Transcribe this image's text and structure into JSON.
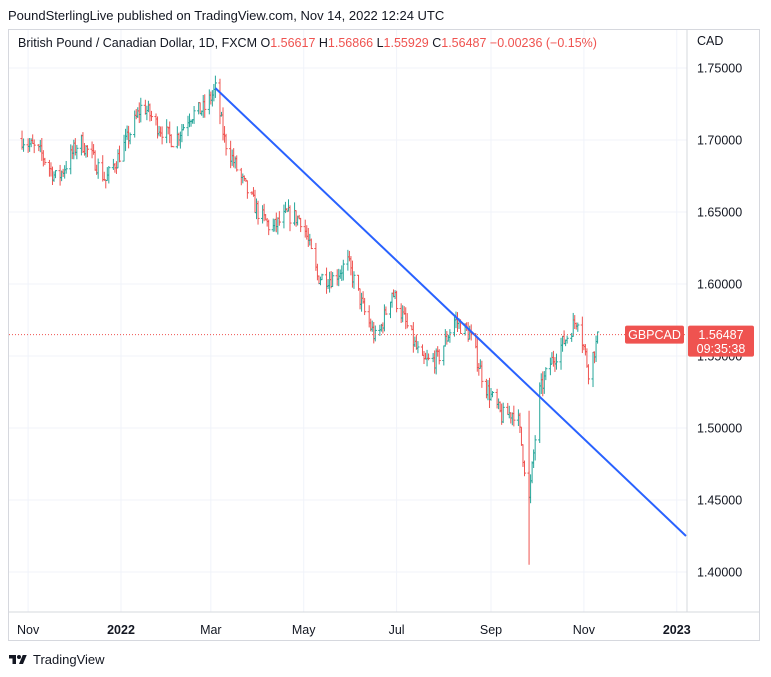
{
  "publisher_line": "PoundSterlingLive published on TradingView.com, Nov 14, 2022 12:24 UTC",
  "legend": {
    "symbol": "British Pound / Canadian Dollar, 1D, FXCM",
    "open_label": "O",
    "open": "1.56617",
    "high_label": "H",
    "high": "1.56866",
    "low_label": "L",
    "low": "1.55929",
    "close_label": "C",
    "close": "1.56487",
    "change": "−0.00236 (−0.15%)"
  },
  "currency": "CAD",
  "price_tag": {
    "symbol": "GBPCAD",
    "price": "1.56487",
    "countdown": "09:35:38"
  },
  "footer": {
    "brand": "TradingView",
    "logo_icon": "tradingview-logo-icon"
  },
  "colors": {
    "up": "#26a69a",
    "down": "#ef5350",
    "trendline": "#2962ff",
    "grid": "#f0f3fa"
  },
  "chart_data": {
    "type": "ohlc",
    "title": "British Pound / Canadian Dollar, 1D, FXCM",
    "ylim": [
      1.38,
      1.76
    ],
    "yticks": [
      "1.40000",
      "1.45000",
      "1.50000",
      "1.55000",
      "1.60000",
      "1.65000",
      "1.70000",
      "1.75000"
    ],
    "xticks": [
      "Nov",
      "2022",
      "Mar",
      "May",
      "Jul",
      "Sep",
      "Nov",
      "2023"
    ],
    "grid": true,
    "current_price": 1.56487,
    "series": [
      {
        "x": "2021-10-28",
        "y": 1.701
      },
      {
        "x": "2021-11-10",
        "y": 1.69
      },
      {
        "x": "2021-11-20",
        "y": 1.672
      },
      {
        "x": "2021-12-05",
        "y": 1.7
      },
      {
        "x": "2021-12-15",
        "y": 1.685
      },
      {
        "x": "2021-12-22",
        "y": 1.672
      },
      {
        "x": "2022-01-05",
        "y": 1.7
      },
      {
        "x": "2022-01-15",
        "y": 1.725
      },
      {
        "x": "2022-01-25",
        "y": 1.71
      },
      {
        "x": "2022-02-05",
        "y": 1.699
      },
      {
        "x": "2022-02-15",
        "y": 1.717
      },
      {
        "x": "2022-02-25",
        "y": 1.722
      },
      {
        "x": "2022-03-04",
        "y": 1.735
      },
      {
        "x": "2022-03-10",
        "y": 1.7
      },
      {
        "x": "2022-03-20",
        "y": 1.675
      },
      {
        "x": "2022-04-01",
        "y": 1.65
      },
      {
        "x": "2022-04-10",
        "y": 1.638
      },
      {
        "x": "2022-04-20",
        "y": 1.648
      },
      {
        "x": "2022-04-30",
        "y": 1.645
      },
      {
        "x": "2022-05-10",
        "y": 1.605
      },
      {
        "x": "2022-05-20",
        "y": 1.604
      },
      {
        "x": "2022-05-30",
        "y": 1.615
      },
      {
        "x": "2022-06-10",
        "y": 1.58
      },
      {
        "x": "2022-06-18",
        "y": 1.56
      },
      {
        "x": "2022-06-28",
        "y": 1.595
      },
      {
        "x": "2022-07-08",
        "y": 1.57
      },
      {
        "x": "2022-07-18",
        "y": 1.545
      },
      {
        "x": "2022-07-28",
        "y": 1.548
      },
      {
        "x": "2022-08-08",
        "y": 1.575
      },
      {
        "x": "2022-08-18",
        "y": 1.565
      },
      {
        "x": "2022-08-28",
        "y": 1.53
      },
      {
        "x": "2022-09-08",
        "y": 1.508
      },
      {
        "x": "2022-09-18",
        "y": 1.512
      },
      {
        "x": "2022-09-26",
        "y": 1.45
      },
      {
        "x": "2022-10-03",
        "y": 1.525
      },
      {
        "x": "2022-10-10",
        "y": 1.545
      },
      {
        "x": "2022-10-20",
        "y": 1.562
      },
      {
        "x": "2022-10-28",
        "y": 1.577
      },
      {
        "x": "2022-11-04",
        "y": 1.54
      },
      {
        "x": "2022-11-11",
        "y": 1.565
      }
    ],
    "annotations": [
      {
        "type": "trendline",
        "from": {
          "x": "2022-03-04",
          "y": 1.736
        },
        "to": {
          "x": "2023-01-08",
          "y": 1.425
        }
      }
    ]
  }
}
